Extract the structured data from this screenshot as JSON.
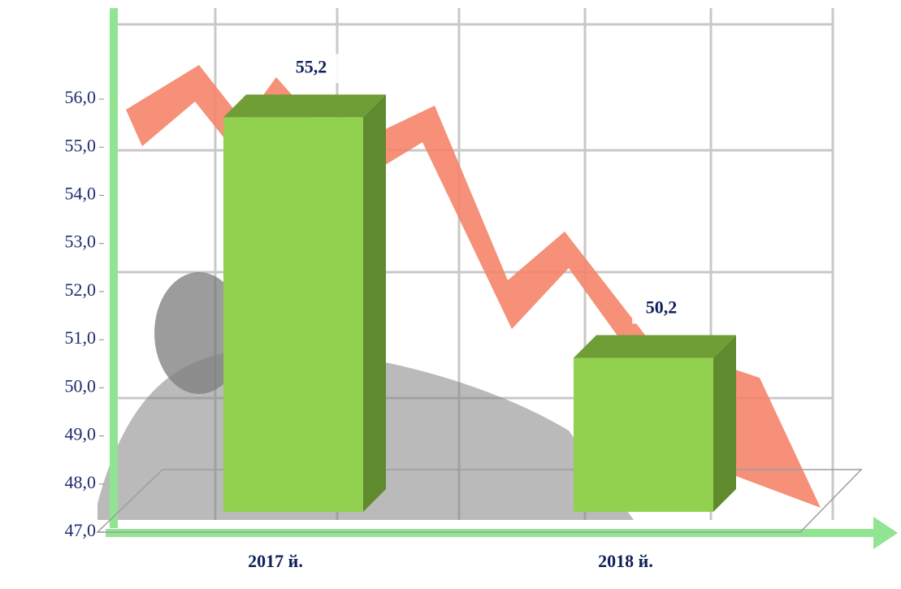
{
  "chart_data": {
    "type": "bar",
    "categories": [
      "2017 й.",
      "2018 й."
    ],
    "values": [
      55.2,
      50.2
    ],
    "value_labels": [
      "55,2",
      "50,2"
    ],
    "color": "#92d050",
    "ylim": [
      47,
      56
    ],
    "yticks": [
      {
        "value": 47,
        "label": "47,0"
      },
      {
        "value": 48,
        "label": "48,0"
      },
      {
        "value": 49,
        "label": "49,0"
      },
      {
        "value": 50,
        "label": "50,0"
      },
      {
        "value": 51,
        "label": "51,0"
      },
      {
        "value": 52,
        "label": "52,0"
      },
      {
        "value": 53,
        "label": "53,0"
      },
      {
        "value": 54,
        "label": "54,0"
      },
      {
        "value": 55,
        "label": "55,0"
      },
      {
        "value": 56,
        "label": "56,0"
      }
    ]
  }
}
